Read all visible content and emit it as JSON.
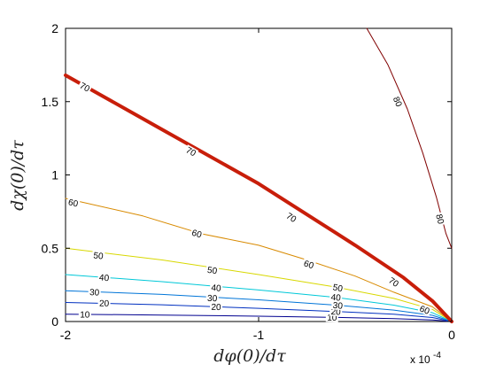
{
  "chart_data": {
    "type": "line",
    "subtype": "contour",
    "title": "",
    "xlabel": "dφ(0)/dτ",
    "ylabel": "dχ(0)/dτ",
    "x_multiplier_label": "x 10",
    "x_multiplier_exponent": "-4",
    "xlim": [
      -2,
      0
    ],
    "ylim": [
      0,
      2
    ],
    "x_ticks": [
      {
        "value": -2,
        "label": "-2"
      },
      {
        "value": -1,
        "label": "-1"
      },
      {
        "value": 0,
        "label": "0"
      }
    ],
    "y_ticks": [
      {
        "value": 0,
        "label": "0"
      },
      {
        "value": 0.5,
        "label": "0.5"
      },
      {
        "value": 1,
        "label": "1"
      },
      {
        "value": 1.5,
        "label": "1.5"
      },
      {
        "value": 2,
        "label": "2"
      }
    ],
    "grid": false,
    "legend": "none",
    "series": [
      {
        "level": "10",
        "color": "#00008f",
        "points": [
          [
            -2,
            0.05
          ],
          [
            -1.5,
            0.044
          ],
          [
            -1.0,
            0.036
          ],
          [
            -0.6,
            0.028
          ],
          [
            -0.3,
            0.02
          ],
          [
            -0.1,
            0.011
          ],
          [
            0,
            0
          ]
        ],
        "labels": [
          {
            "text": "10",
            "x": -1.9,
            "y": 0.048
          },
          {
            "text": "10",
            "x": -0.62,
            "y": 0.028
          }
        ]
      },
      {
        "level": "20",
        "color": "#0030c0",
        "points": [
          [
            -2,
            0.13
          ],
          [
            -1.5,
            0.114
          ],
          [
            -1.0,
            0.09
          ],
          [
            -0.6,
            0.068
          ],
          [
            -0.3,
            0.05
          ],
          [
            -0.1,
            0.027
          ],
          [
            0,
            0
          ]
        ],
        "labels": [
          {
            "text": "20",
            "x": -1.8,
            "y": 0.125
          },
          {
            "text": "20",
            "x": -1.22,
            "y": 0.1
          },
          {
            "text": "20",
            "x": -0.6,
            "y": 0.068
          }
        ]
      },
      {
        "level": "30",
        "color": "#0075d8",
        "points": [
          [
            -2,
            0.21
          ],
          [
            -1.5,
            0.185
          ],
          [
            -1.0,
            0.148
          ],
          [
            -0.6,
            0.112
          ],
          [
            -0.3,
            0.078
          ],
          [
            -0.1,
            0.042
          ],
          [
            0,
            0
          ]
        ],
        "labels": [
          {
            "text": "30",
            "x": -1.85,
            "y": 0.2
          },
          {
            "text": "30",
            "x": -1.24,
            "y": 0.16
          },
          {
            "text": "30",
            "x": -0.59,
            "y": 0.11
          }
        ]
      },
      {
        "level": "40",
        "color": "#00c8d8",
        "points": [
          [
            -2,
            0.32
          ],
          [
            -1.5,
            0.272
          ],
          [
            -1.0,
            0.215
          ],
          [
            -0.6,
            0.165
          ],
          [
            -0.3,
            0.112
          ],
          [
            -0.1,
            0.06
          ],
          [
            0,
            0
          ]
        ],
        "labels": [
          {
            "text": "40",
            "x": -1.8,
            "y": 0.3
          },
          {
            "text": "40",
            "x": -1.22,
            "y": 0.23
          },
          {
            "text": "40",
            "x": -0.6,
            "y": 0.165
          }
        ]
      },
      {
        "level": "50",
        "color": "#d8d800",
        "points": [
          [
            -2,
            0.5
          ],
          [
            -1.5,
            0.42
          ],
          [
            -1.0,
            0.32
          ],
          [
            -0.6,
            0.235
          ],
          [
            -0.3,
            0.158
          ],
          [
            -0.1,
            0.083
          ],
          [
            0,
            0
          ]
        ],
        "labels": [
          {
            "text": "50",
            "x": -1.83,
            "y": 0.45
          },
          {
            "text": "50",
            "x": -1.24,
            "y": 0.35
          },
          {
            "text": "50",
            "x": -0.59,
            "y": 0.23
          }
        ]
      },
      {
        "level": "60",
        "color": "#d88a00",
        "points": [
          [
            -2,
            0.84
          ],
          [
            -1.6,
            0.72
          ],
          [
            -1.3,
            0.6
          ],
          [
            -1.0,
            0.52
          ],
          [
            -0.75,
            0.42
          ],
          [
            -0.5,
            0.31
          ],
          [
            -0.3,
            0.2
          ],
          [
            -0.1,
            0.1
          ],
          [
            0,
            0
          ]
        ],
        "labels": [
          {
            "text": "60",
            "x": -1.96,
            "y": 0.81
          },
          {
            "text": "60",
            "x": -1.32,
            "y": 0.6
          },
          {
            "text": "60",
            "x": -0.74,
            "y": 0.39
          },
          {
            "text": "60",
            "x": -0.14,
            "y": 0.08
          }
        ]
      },
      {
        "level": "70",
        "color": "#c81e0a",
        "points": [
          [
            -2,
            1.68
          ],
          [
            -1.5,
            1.31
          ],
          [
            -1.0,
            0.94
          ],
          [
            -0.5,
            0.52
          ],
          [
            -0.25,
            0.3
          ],
          [
            -0.1,
            0.14
          ],
          [
            0,
            0
          ]
        ],
        "labels": [
          {
            "text": "70",
            "x": -1.9,
            "y": 1.6
          },
          {
            "text": "70",
            "x": -1.35,
            "y": 1.16
          },
          {
            "text": "70",
            "x": -0.83,
            "y": 0.71
          },
          {
            "text": "70",
            "x": -0.3,
            "y": 0.27
          }
        ]
      },
      {
        "level": "80",
        "color": "#800000",
        "points": [
          [
            -0.44,
            2
          ],
          [
            -0.33,
            1.75
          ],
          [
            -0.23,
            1.45
          ],
          [
            -0.15,
            1.15
          ],
          [
            -0.08,
            0.85
          ],
          [
            -0.03,
            0.6
          ],
          [
            0,
            0.5
          ]
        ],
        "labels": [
          {
            "text": "80",
            "x": -0.28,
            "y": 1.5
          },
          {
            "text": "80",
            "x": -0.06,
            "y": 0.7
          }
        ]
      }
    ]
  }
}
